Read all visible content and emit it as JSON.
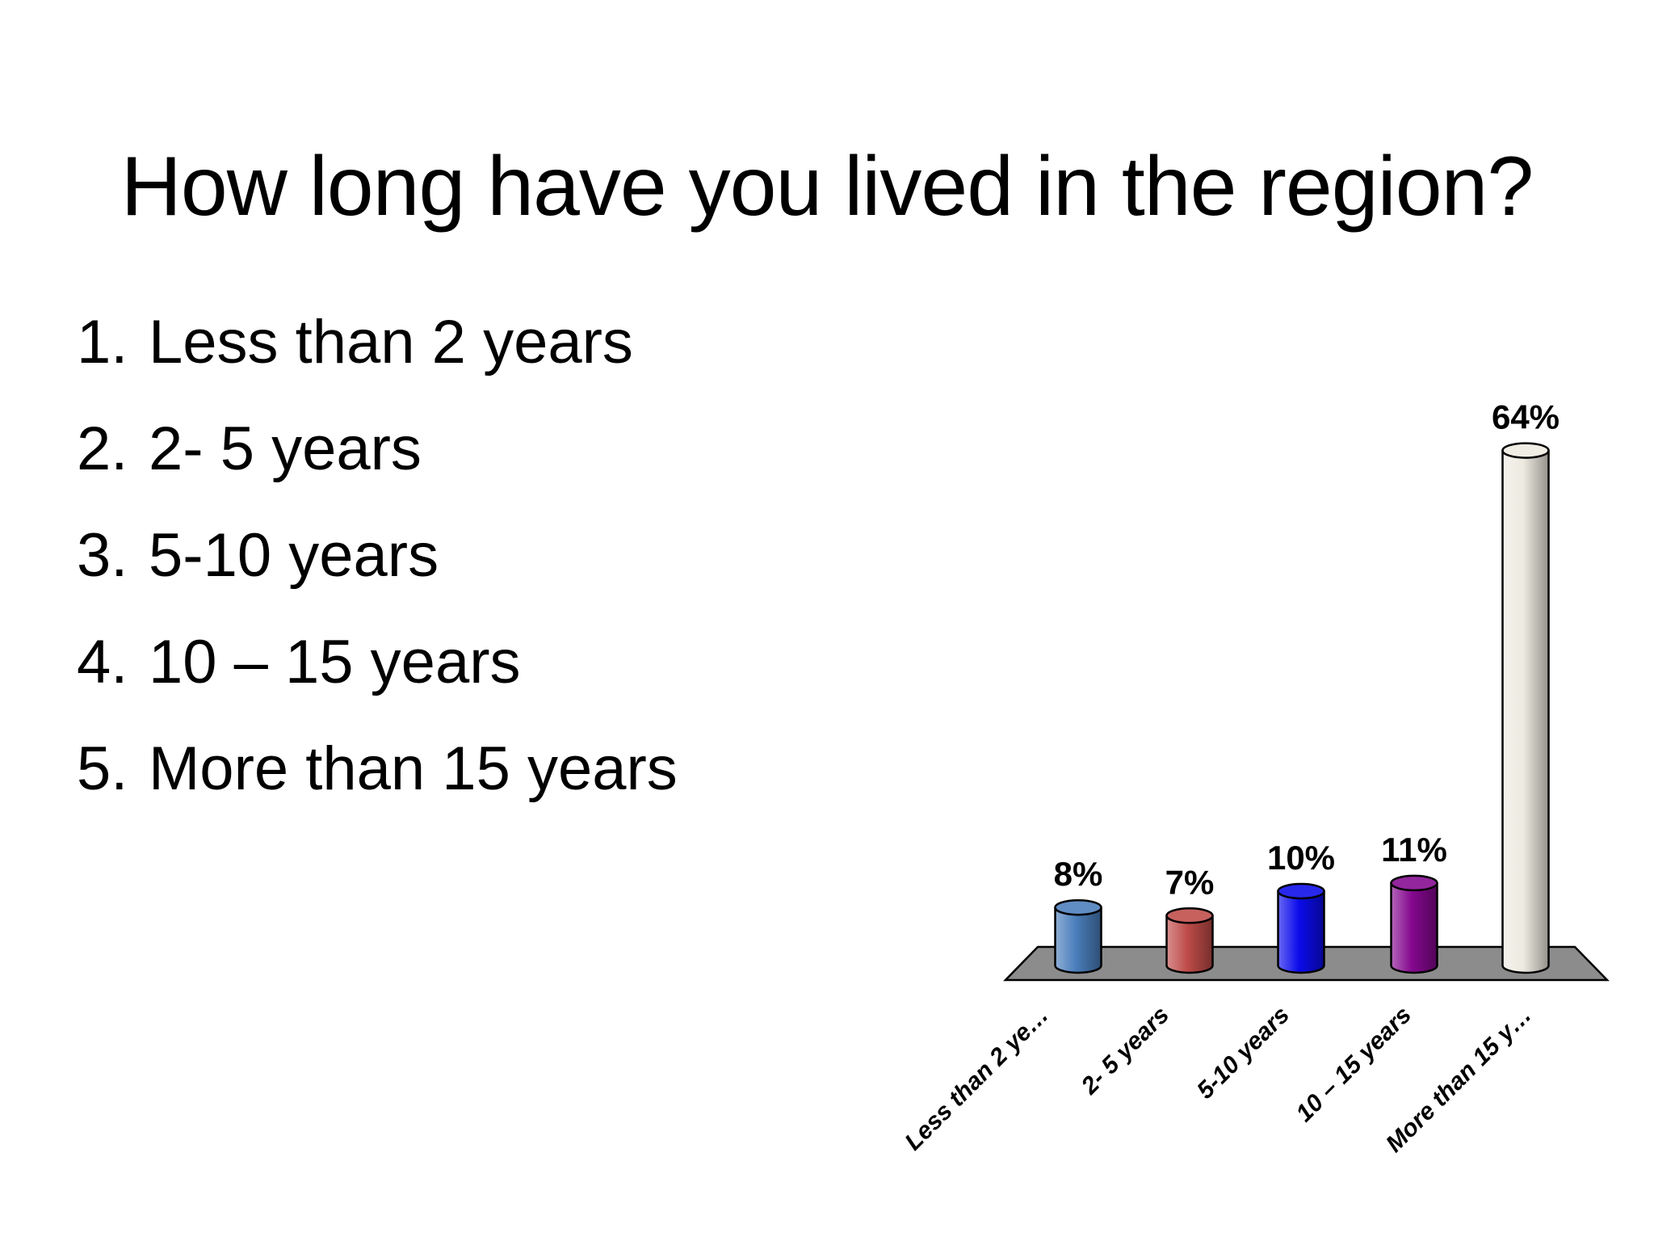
{
  "slide": {
    "title": "How long have you lived in the region?",
    "options": [
      {
        "num": "1.",
        "label": "Less than 2 years"
      },
      {
        "num": "2.",
        "label": "2- 5 years"
      },
      {
        "num": "3.",
        "label": "5-10 years"
      },
      {
        "num": "4.",
        "label": "10 – 15 years"
      },
      {
        "num": "5.",
        "label": "More than 15 years"
      }
    ]
  },
  "chart_data": {
    "type": "bar",
    "title": "",
    "xlabel": "",
    "ylabel": "",
    "categories": [
      "Less than 2 years",
      "2- 5 years",
      "5-10 years",
      "10 – 15 years",
      "More than 15 years"
    ],
    "tick_labels": [
      "Less than 2 ye…",
      "2- 5 years",
      "5-10 years",
      "10 – 15 years",
      "More than 15 y…"
    ],
    "values": [
      8,
      7,
      10,
      11,
      64
    ],
    "value_labels": [
      "8%",
      "7%",
      "10%",
      "11%",
      "64%"
    ],
    "bar_colors": [
      "#4A7EBB",
      "#BE4B48",
      "#0B0BEB",
      "#84088E",
      "#EDEAE0"
    ],
    "floor_color": "#8C8C8C",
    "outline_color": "#000000",
    "bar_style": "3d-cylinder",
    "ylim": [
      0,
      70
    ],
    "grid": false,
    "legend": "none",
    "axes": "hidden"
  }
}
